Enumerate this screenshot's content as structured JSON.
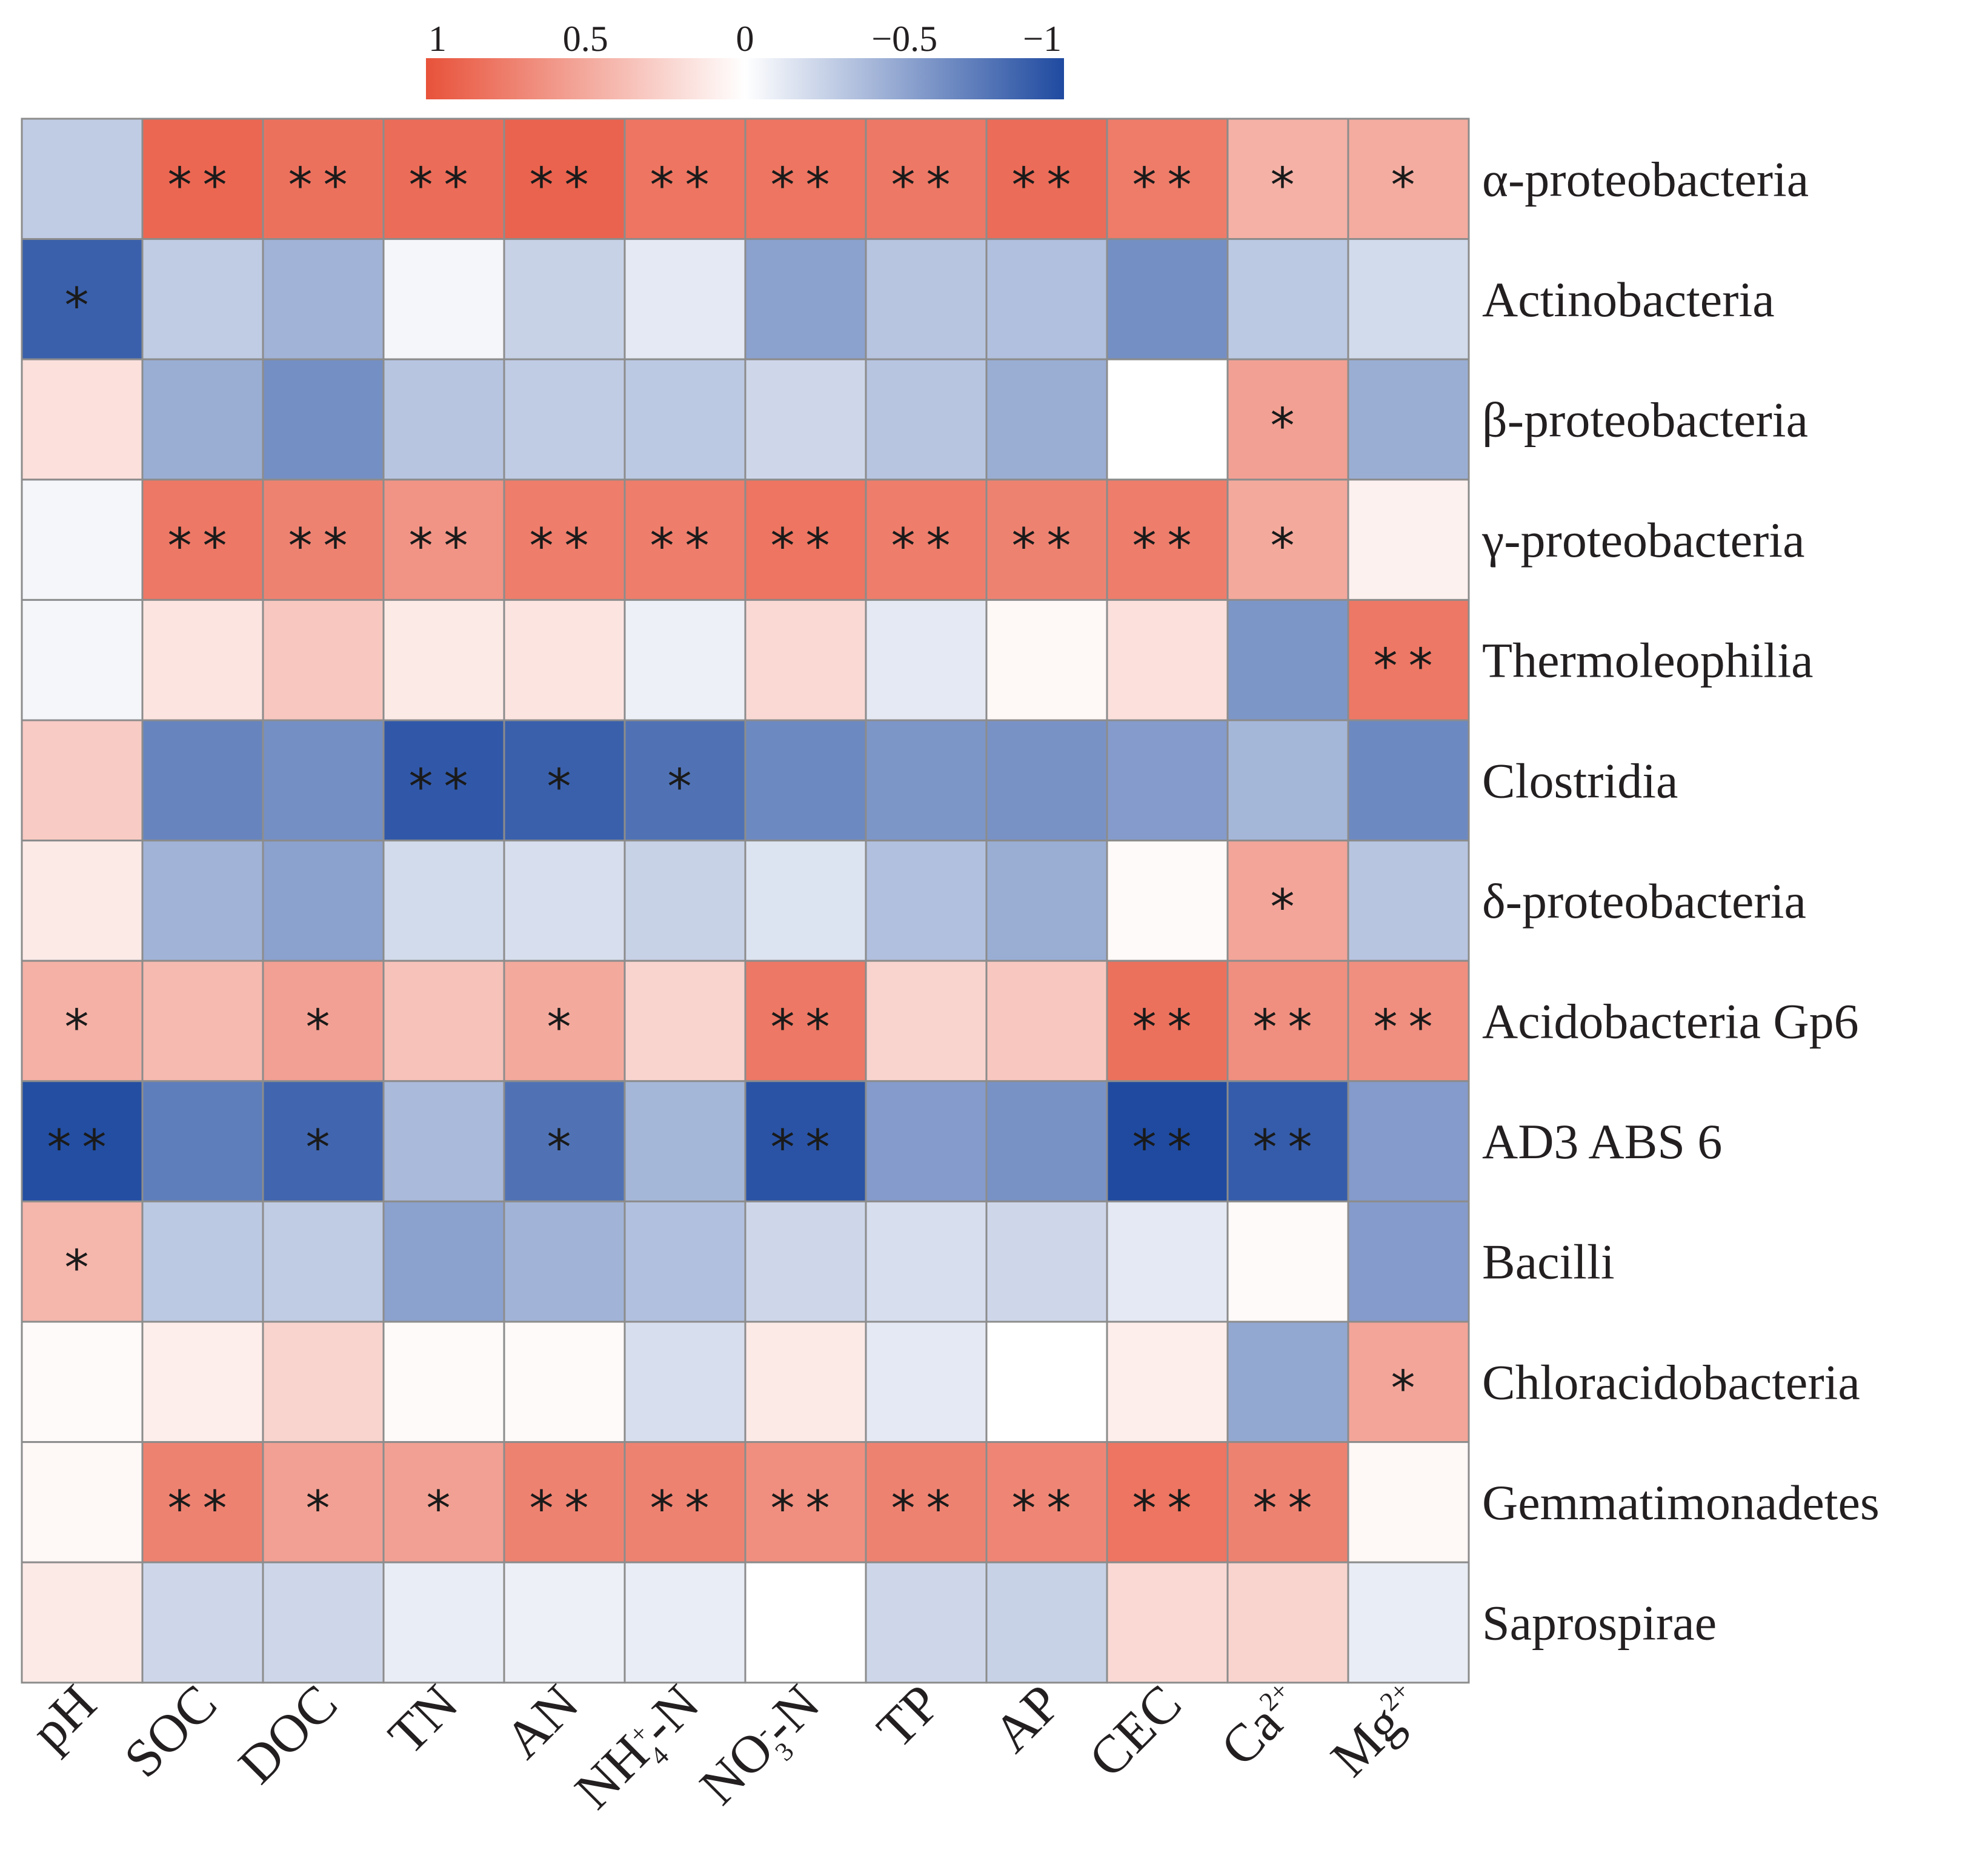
{
  "chart_data": {
    "type": "heatmap",
    "title": "",
    "xlabel": "",
    "ylabel": "",
    "columns": [
      "pH",
      "SOC",
      "DOC",
      "TN",
      "AN",
      "NH4+-N",
      "NO3--N",
      "TP",
      "AP",
      "CEC",
      "Ca2+",
      "Mg2+"
    ],
    "column_labels": [
      {
        "base": "pH",
        "sup": "",
        "sub": "",
        "tail": ""
      },
      {
        "base": "SOC",
        "sup": "",
        "sub": "",
        "tail": ""
      },
      {
        "base": "DOC",
        "sup": "",
        "sub": "",
        "tail": ""
      },
      {
        "base": "TN",
        "sup": "",
        "sub": "",
        "tail": ""
      },
      {
        "base": "AN",
        "sup": "",
        "sub": "",
        "tail": ""
      },
      {
        "base": "NH",
        "sup": "+",
        "sub": "4",
        "tail": "-N"
      },
      {
        "base": "NO",
        "sup": "-",
        "sub": "3",
        "tail": "-N"
      },
      {
        "base": "TP",
        "sup": "",
        "sub": "",
        "tail": ""
      },
      {
        "base": "AP",
        "sup": "",
        "sub": "",
        "tail": ""
      },
      {
        "base": "CEC",
        "sup": "",
        "sub": "",
        "tail": ""
      },
      {
        "base": "Ca",
        "sup": "2+",
        "sub": "",
        "tail": ""
      },
      {
        "base": "Mg",
        "sup": "2+",
        "sub": "",
        "tail": ""
      }
    ],
    "rows": [
      "α-proteobacteria",
      "Actinobacteria",
      "β-proteobacteria",
      "γ-proteobacteria",
      "Thermoleophilia",
      "Clostridia",
      "δ-proteobacteria",
      "Acidobacteria Gp6",
      "AD3  ABS  6",
      "Bacilli",
      "Chloracidobacteria",
      "Gemmatimonadetes",
      "Saprospirae"
    ],
    "values": [
      [
        -0.28,
        0.88,
        0.82,
        0.85,
        0.9,
        0.8,
        0.8,
        0.78,
        0.85,
        0.76,
        0.45,
        0.48
      ],
      [
        -0.88,
        -0.28,
        -0.42,
        -0.05,
        -0.25,
        -0.12,
        -0.52,
        -0.32,
        -0.35,
        -0.62,
        -0.3,
        -0.2
      ],
      [
        0.18,
        -0.45,
        -0.62,
        -0.32,
        -0.28,
        -0.3,
        -0.22,
        -0.32,
        -0.45,
        0.0,
        0.55,
        -0.45
      ],
      [
        -0.05,
        0.78,
        0.72,
        0.62,
        0.75,
        0.75,
        0.8,
        0.75,
        0.72,
        0.75,
        0.5,
        0.08
      ],
      [
        -0.05,
        0.15,
        0.32,
        0.12,
        0.15,
        -0.08,
        0.22,
        -0.12,
        0.04,
        0.18,
        -0.58,
        0.78
      ],
      [
        0.3,
        -0.68,
        -0.62,
        -0.92,
        -0.88,
        -0.78,
        -0.65,
        -0.58,
        -0.6,
        -0.55,
        -0.4,
        -0.65
      ],
      [
        0.12,
        -0.42,
        -0.52,
        -0.2,
        -0.18,
        -0.25,
        -0.15,
        -0.35,
        -0.45,
        0.03,
        0.52,
        -0.32
      ],
      [
        0.45,
        0.4,
        0.55,
        0.35,
        0.5,
        0.25,
        0.78,
        0.25,
        0.32,
        0.82,
        0.65,
        0.65
      ],
      [
        -0.98,
        -0.72,
        -0.85,
        -0.38,
        -0.78,
        -0.4,
        -0.95,
        -0.55,
        -0.6,
        -1.0,
        -0.9,
        -0.55
      ],
      [
        0.42,
        -0.3,
        -0.28,
        -0.52,
        -0.42,
        -0.35,
        -0.22,
        -0.18,
        -0.22,
        -0.12,
        0.03,
        -0.55
      ],
      [
        0.03,
        0.1,
        0.25,
        0.03,
        0.03,
        -0.18,
        0.12,
        -0.12,
        0.0,
        0.1,
        -0.48,
        0.52
      ],
      [
        0.04,
        0.72,
        0.55,
        0.55,
        0.72,
        0.72,
        0.65,
        0.72,
        0.7,
        0.8,
        0.72,
        0.04
      ],
      [
        0.12,
        -0.22,
        -0.22,
        -0.1,
        -0.08,
        -0.1,
        0.0,
        -0.22,
        -0.25,
        0.22,
        0.25,
        -0.1
      ]
    ],
    "significance": [
      [
        "",
        "**",
        "**",
        "**",
        "**",
        "**",
        "**",
        "**",
        "**",
        "**",
        "*",
        "*"
      ],
      [
        "*",
        "",
        "",
        "",
        "",
        "",
        "",
        "",
        "",
        "",
        "",
        ""
      ],
      [
        "",
        "",
        "",
        "",
        "",
        "",
        "",
        "",
        "",
        "",
        "*",
        ""
      ],
      [
        "",
        "**",
        "**",
        "**",
        "**",
        "**",
        "**",
        "**",
        "**",
        "**",
        "*",
        ""
      ],
      [
        "",
        "",
        "",
        "",
        "",
        "",
        "",
        "",
        "",
        "",
        "",
        "**"
      ],
      [
        "",
        "",
        "",
        "**",
        "*",
        "*",
        "",
        "",
        "",
        "",
        "",
        ""
      ],
      [
        "",
        "",
        "",
        "",
        "",
        "",
        "",
        "",
        "",
        "",
        "*",
        ""
      ],
      [
        "*",
        "",
        "*",
        "",
        "*",
        "",
        "**",
        "",
        "",
        "**",
        "**",
        "**"
      ],
      [
        "**",
        "",
        "*",
        "",
        "*",
        "",
        "**",
        "",
        "",
        "**",
        "**",
        ""
      ],
      [
        "*",
        "",
        "",
        "",
        "",
        "",
        "",
        "",
        "",
        "",
        "",
        ""
      ],
      [
        "",
        "",
        "",
        "",
        "",
        "",
        "",
        "",
        "",
        "",
        "",
        "*"
      ],
      [
        "",
        "**",
        "*",
        "*",
        "**",
        "**",
        "**",
        "**",
        "**",
        "**",
        "**",
        ""
      ],
      [
        "",
        "",
        "",
        "",
        "",
        "",
        "",
        "",
        "",
        "",
        "",
        ""
      ]
    ],
    "colorbar": {
      "ticks": [
        1,
        0.5,
        0,
        -0.5,
        -1
      ],
      "tick_labels": [
        "1",
        "0.5",
        "0",
        "−0.5",
        "−1"
      ],
      "range": [
        1,
        -1
      ],
      "colors": {
        "positive": "#e8523a",
        "zero": "#ffffff",
        "negative": "#1f4aa0"
      },
      "placement": "top"
    },
    "grid": true
  }
}
